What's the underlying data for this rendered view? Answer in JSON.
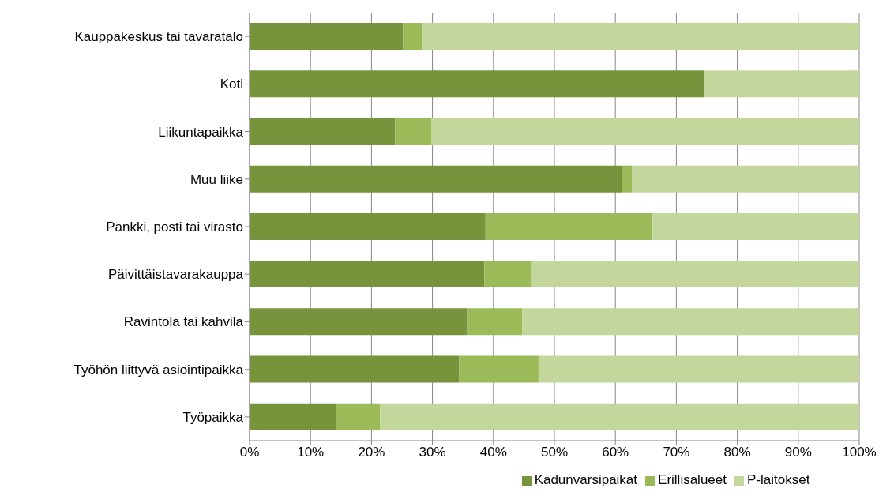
{
  "chart_data": {
    "type": "bar",
    "orientation": "horizontal",
    "stacked": true,
    "categories": [
      "Kauppakeskus tai tavaratalo",
      "Koti",
      "Liikuntapaikka",
      "Muu liike",
      "Pankki, posti tai virasto",
      "Päivittäistavarakauppa",
      "Ravintola tai kahvila",
      "Työhön liittyvä asiointipaikka",
      "Työpaikka"
    ],
    "series": [
      {
        "name": "Kadunvarsipaikat",
        "color": "#77933c",
        "values": [
          25.2,
          74.5,
          23.9,
          61.1,
          38.7,
          38.5,
          35.7,
          34.4,
          14.2
        ]
      },
      {
        "name": "Erillisalueet",
        "color": "#9bbb59",
        "values": [
          3.1,
          0,
          5.9,
          1.6,
          27.4,
          7.7,
          9.0,
          13.0,
          7.2
        ]
      },
      {
        "name": "P-laitokset",
        "color": "#c3d69b",
        "values": [
          71.7,
          25.5,
          70.2,
          37.3,
          33.9,
          53.8,
          55.3,
          52.6,
          78.6
        ]
      }
    ],
    "xlim": [
      0,
      100
    ],
    "xticks": [
      {
        "value": 0,
        "label": "0%"
      },
      {
        "value": 10,
        "label": "10%"
      },
      {
        "value": 20,
        "label": "20%"
      },
      {
        "value": 30,
        "label": "30%"
      },
      {
        "value": 40,
        "label": "40%"
      },
      {
        "value": 50,
        "label": "50%"
      },
      {
        "value": 60,
        "label": "60%"
      },
      {
        "value": 70,
        "label": "70%"
      },
      {
        "value": 80,
        "label": "80%"
      },
      {
        "value": 90,
        "label": "90%"
      },
      {
        "value": 100,
        "label": "100%"
      }
    ],
    "grid": "x",
    "legend": "bottom"
  }
}
